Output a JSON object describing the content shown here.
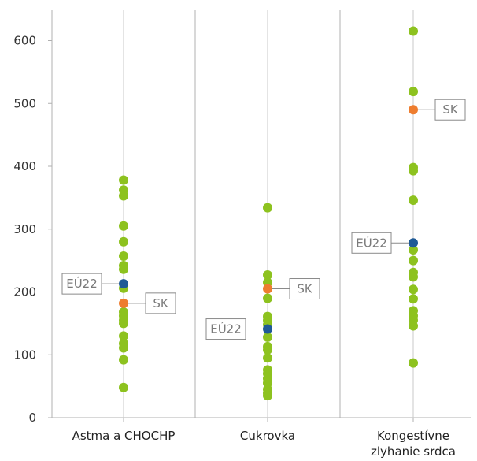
{
  "chart_data": {
    "type": "scatter",
    "title": "",
    "xlabel": "",
    "ylabel": "",
    "ylim": [
      0,
      640
    ],
    "yticks": [
      0,
      100,
      200,
      300,
      400,
      500,
      600
    ],
    "grid": false,
    "categories": [
      {
        "label": "Astma a CHOCHP",
        "label_lines": [
          "Astma a CHOCHP"
        ]
      },
      {
        "label": "Cukrovka",
        "label_lines": [
          "Cukrovka"
        ]
      },
      {
        "label": "Kongestívne zlyhanie srdca",
        "label_lines": [
          "Kongestívne",
          "zlyhanie srdca"
        ]
      }
    ],
    "colors": {
      "countries": "#8dc21f",
      "eu22": "#1f5a96",
      "sk": "#ee7d2f"
    },
    "series": [
      {
        "values": [
          [
            378,
            362,
            353,
            305,
            280,
            257,
            242,
            236,
            206,
            168,
            162,
            155,
            150,
            130,
            118,
            111,
            92,
            48
          ],
          [
            334,
            227,
            215,
            190,
            161,
            155,
            148,
            128,
            113,
            108,
            95,
            76,
            70,
            62,
            55,
            45,
            39,
            35
          ],
          [
            615,
            519,
            398,
            393,
            346,
            267,
            250,
            231,
            224,
            204,
            189,
            170,
            162,
            155,
            146,
            87
          ]
        ]
      },
      {
        "name": "EÚ22",
        "values": [
          213,
          141,
          278
        ]
      },
      {
        "name": "SK",
        "values": [
          182,
          205,
          490
        ]
      }
    ]
  }
}
